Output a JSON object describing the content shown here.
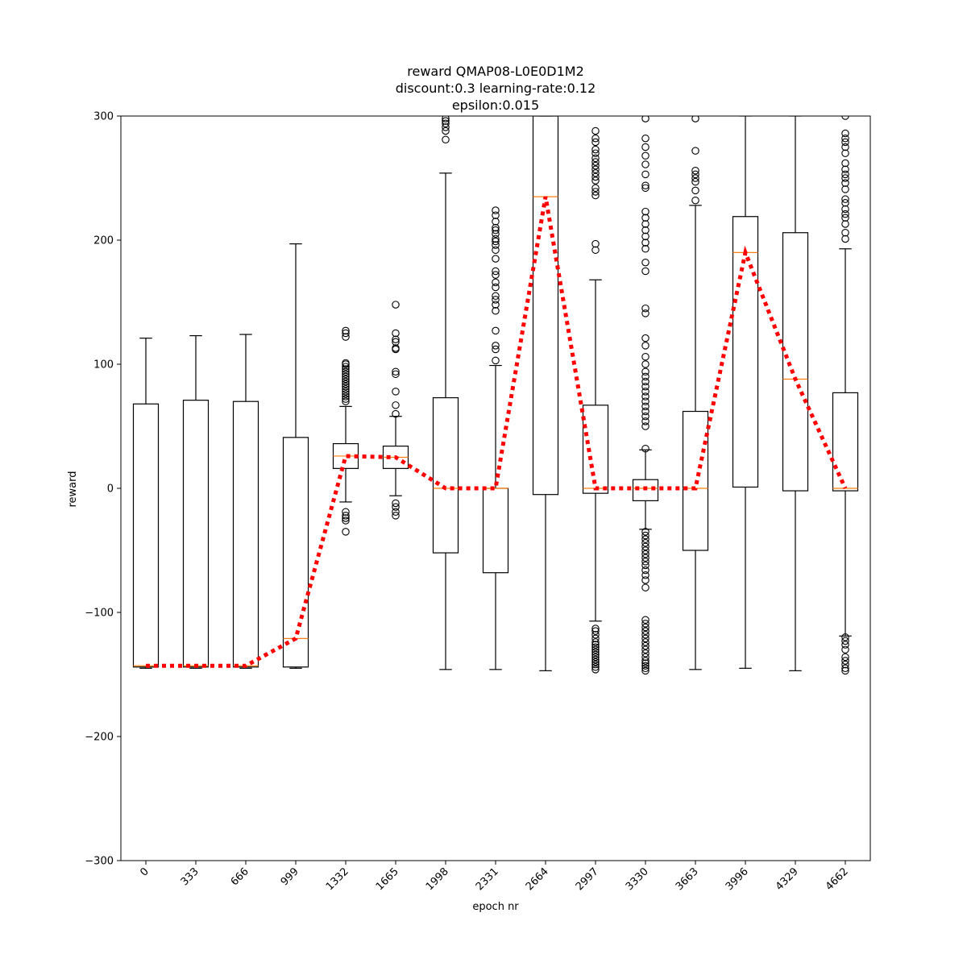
{
  "chart_data": {
    "type": "box",
    "title_lines": [
      "reward QMAP08-L0E0D1M2",
      "discount:0.3 learning-rate:0.12",
      "epsilon:0.015"
    ],
    "xlabel": "epoch nr",
    "ylabel": "reward",
    "ylim": [
      -300,
      300
    ],
    "yticks": [
      -300,
      -200,
      -100,
      0,
      100,
      200,
      300
    ],
    "ytick_labels": [
      "−300",
      "−200",
      "−100",
      "0",
      "100",
      "200",
      "300"
    ],
    "categories": [
      "0",
      "333",
      "666",
      "999",
      "1332",
      "1665",
      "1998",
      "2331",
      "2664",
      "2997",
      "3330",
      "3663",
      "3996",
      "4329",
      "4662"
    ],
    "colors": {
      "box": "#000000",
      "median": "#ff7f0e",
      "trend": "#ff0000"
    },
    "grid": false,
    "boxes": [
      {
        "label": "0",
        "whisker_low": -145,
        "q1": -144,
        "median": -143,
        "q3": 68,
        "whisker_high": 121,
        "outliers": []
      },
      {
        "label": "333",
        "whisker_low": -145,
        "q1": -144,
        "median": -143,
        "q3": 71,
        "whisker_high": 123,
        "outliers": []
      },
      {
        "label": "666",
        "whisker_low": -145,
        "q1": -144,
        "median": -143,
        "q3": 70,
        "whisker_high": 124,
        "outliers": []
      },
      {
        "label": "999",
        "whisker_low": -145,
        "q1": -144,
        "median": -121,
        "q3": 41,
        "whisker_high": 197,
        "outliers": []
      },
      {
        "label": "1332",
        "whisker_low": -11,
        "q1": 16,
        "median": 26,
        "q3": 36,
        "whisker_high": 66,
        "outliers": [
          -35,
          -26,
          -24,
          -22,
          -19,
          70,
          72,
          74,
          76,
          78,
          80,
          82,
          84,
          86,
          88,
          90,
          92,
          94,
          96,
          98,
          100,
          101,
          122,
          125,
          127
        ]
      },
      {
        "label": "1665",
        "whisker_low": -6,
        "q1": 16,
        "median": 25,
        "q3": 34,
        "whisker_high": 58,
        "outliers": [
          -22,
          -19,
          -15,
          -12,
          60,
          67,
          78,
          92,
          94,
          112,
          113,
          118,
          120,
          125,
          148
        ]
      },
      {
        "label": "1998",
        "whisker_low": -146,
        "q1": -52,
        "median": 0,
        "q3": 73,
        "whisker_high": 254,
        "outliers": [
          281,
          288,
          291,
          294,
          296,
          298
        ]
      },
      {
        "label": "2331",
        "whisker_low": -146,
        "q1": -68,
        "median": 0,
        "q3": 0,
        "whisker_high": 99,
        "outliers": [
          103,
          112,
          115,
          127,
          143,
          148,
          152,
          155,
          162,
          166,
          172,
          175,
          185,
          192,
          196,
          199,
          201,
          205,
          208,
          210,
          215,
          220,
          224
        ]
      },
      {
        "label": "2664",
        "whisker_low": -147,
        "q1": -5,
        "median": 235,
        "q3": 300,
        "whisker_high": 300,
        "outliers": []
      },
      {
        "label": "2997",
        "whisker_low": -107,
        "q1": -4,
        "median": 0,
        "q3": 67,
        "whisker_high": 168,
        "outliers": [
          -146,
          -144,
          -142,
          -140,
          -138,
          -136,
          -134,
          -132,
          -130,
          -128,
          -126,
          -124,
          -121,
          -118,
          -115,
          -113,
          192,
          197,
          236,
          239,
          242,
          248,
          251,
          254,
          257,
          260,
          263,
          266,
          270,
          273,
          279,
          282,
          288
        ]
      },
      {
        "label": "3330",
        "whisker_low": -33,
        "q1": -10,
        "median": 0,
        "q3": 7,
        "whisker_high": 31,
        "outliers": [
          -147,
          -145,
          -143,
          -141,
          -139,
          -136,
          -133,
          -130,
          -127,
          -124,
          -121,
          -118,
          -115,
          -112,
          -109,
          -106,
          -80,
          -74,
          -70,
          -66,
          -62,
          -59,
          -56,
          -53,
          -50,
          -47,
          -44,
          -41,
          -38,
          -35,
          32,
          50,
          54,
          58,
          62,
          66,
          70,
          74,
          78,
          82,
          86,
          90,
          94,
          100,
          106,
          115,
          121,
          141,
          145,
          175,
          182,
          193,
          198,
          203,
          208,
          213,
          218,
          223,
          242,
          244,
          253,
          261,
          268,
          275,
          282,
          298
        ]
      },
      {
        "label": "3663",
        "whisker_low": -146,
        "q1": -50,
        "median": 0,
        "q3": 62,
        "whisker_high": 228,
        "outliers": [
          232,
          240,
          247,
          250,
          253,
          256,
          272,
          298
        ]
      },
      {
        "label": "3996",
        "whisker_low": -145,
        "q1": 1,
        "median": 190,
        "q3": 219,
        "whisker_high": 300,
        "outliers": []
      },
      {
        "label": "4329",
        "whisker_low": -147,
        "q1": -2,
        "median": 88,
        "q3": 206,
        "whisker_high": 300,
        "outliers": []
      },
      {
        "label": "4662",
        "whisker_low": -119,
        "q1": -2,
        "median": 0,
        "q3": 77,
        "whisker_high": 193,
        "outliers": [
          -147,
          -145,
          -142,
          -139,
          -136,
          -130,
          -126,
          -123,
          -120,
          201,
          206,
          213,
          218,
          221,
          225,
          230,
          233,
          241,
          246,
          250,
          253,
          257,
          262,
          270,
          275,
          279,
          282,
          286,
          300
        ]
      }
    ],
    "trend": {
      "style": "dotted",
      "values": [
        -143,
        -143,
        -143,
        -121,
        26,
        25,
        0,
        0,
        235,
        0,
        0,
        0,
        190,
        88,
        0
      ]
    }
  }
}
